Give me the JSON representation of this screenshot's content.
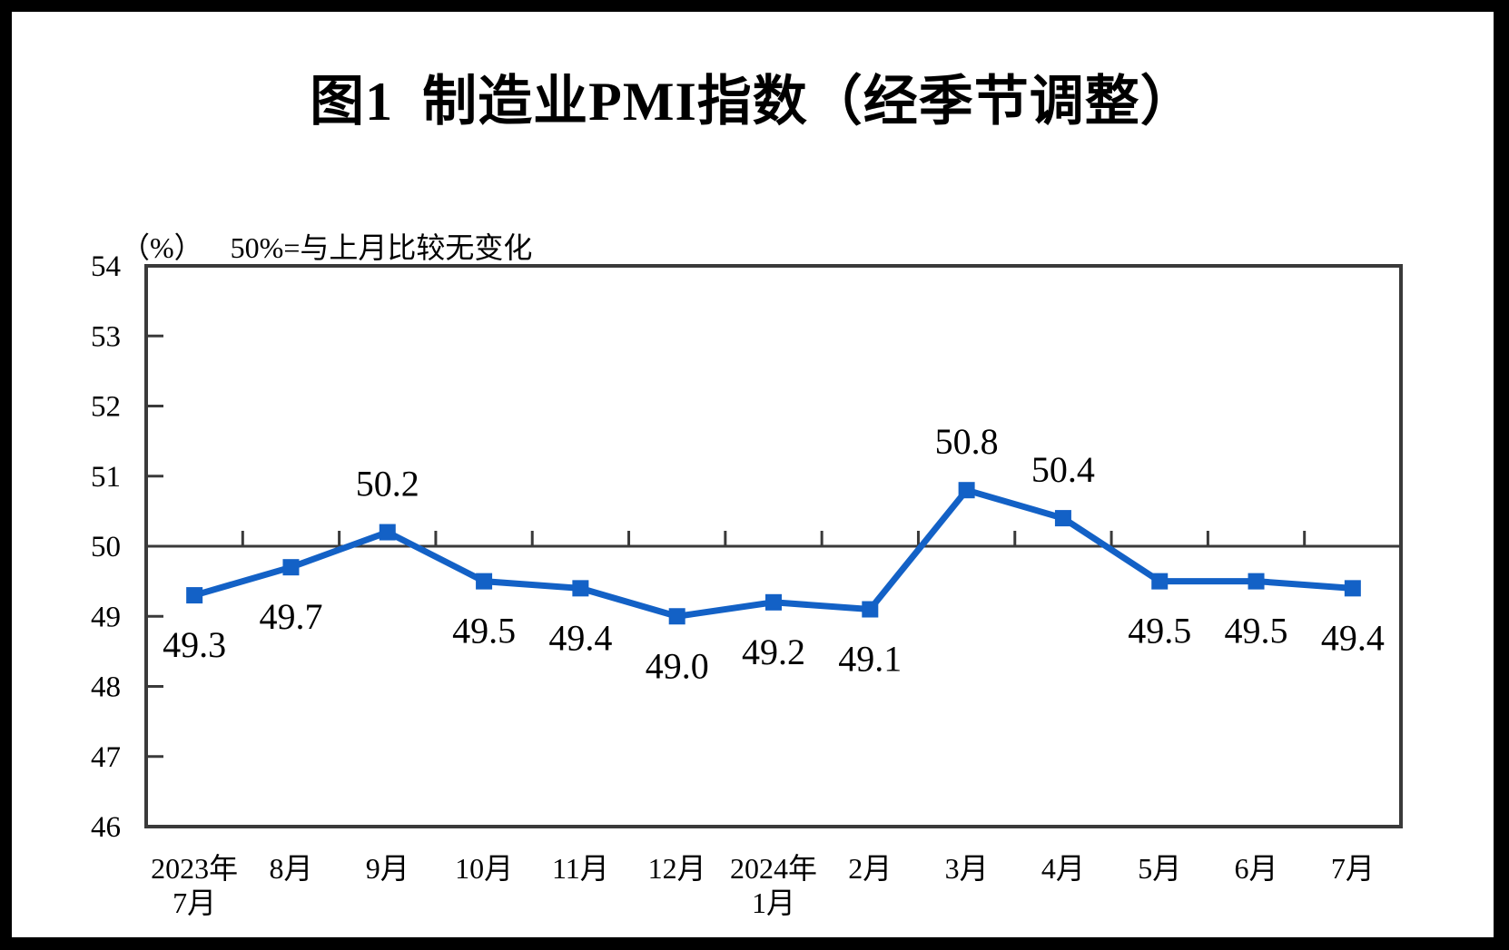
{
  "header": {
    "title": "图1  制造业PMI指数（经季节调整）",
    "unit": "（%）",
    "note": "50%=与上月比较无变化"
  },
  "chart_data": {
    "type": "line",
    "title": "图1 制造业PMI指数（经季节调整）",
    "unit_label": "（%）",
    "annotation": "50%=与上月比较无变化",
    "categories": [
      "2023年\n7月",
      "8月",
      "9月",
      "10月",
      "11月",
      "12月",
      "2024年\n1月",
      "2月",
      "3月",
      "4月",
      "5月",
      "6月",
      "7月"
    ],
    "series": [
      {
        "values": [
          49.3,
          49.7,
          50.2,
          49.5,
          49.4,
          49.0,
          49.2,
          49.1,
          50.8,
          50.4,
          49.5,
          49.5,
          49.4
        ],
        "point_labels": [
          "49.3",
          "49.7",
          "50.2",
          "49.5",
          "49.4",
          "49.0",
          "49.2",
          "49.1",
          "50.8",
          "50.4",
          "49.5",
          "49.5",
          "49.4"
        ],
        "marker": "square"
      }
    ],
    "ylim": [
      46,
      54
    ],
    "yticks": [
      46,
      47,
      48,
      49,
      50,
      51,
      52,
      53,
      54
    ],
    "reference_line": {
      "value": 50
    },
    "grid": false,
    "legend_position": "none",
    "colors": {
      "line": "#1361C6",
      "axis": "#3A3A3A",
      "text": "#000000",
      "background": "#FFFFFF",
      "frame": "#000000"
    }
  }
}
